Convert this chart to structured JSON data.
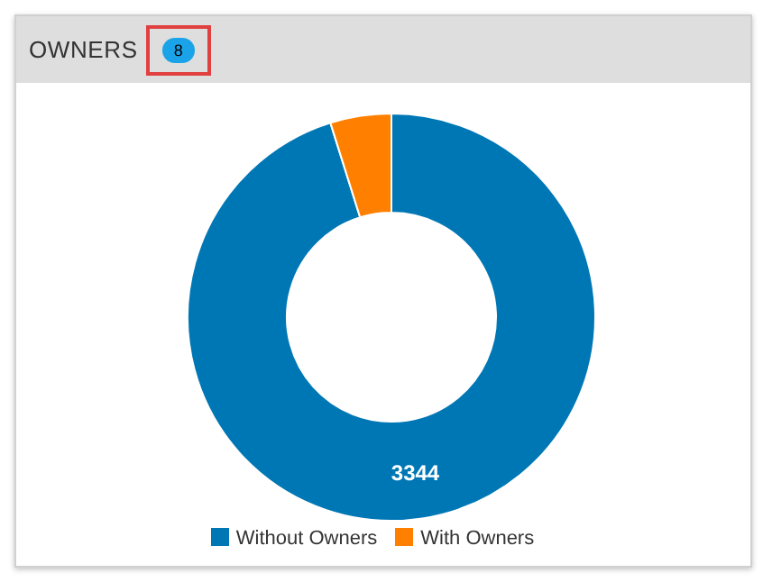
{
  "chart_data": {
    "type": "donut",
    "title": "OWNERS",
    "annotations": [
      "8"
    ],
    "categories": [
      "Without Owners",
      "With Owners"
    ],
    "values": [
      3344,
      170
    ],
    "colors": [
      "#0077b5",
      "#ff7f00"
    ],
    "value_labels": [
      "3344",
      null
    ],
    "legend": "bottom"
  }
}
